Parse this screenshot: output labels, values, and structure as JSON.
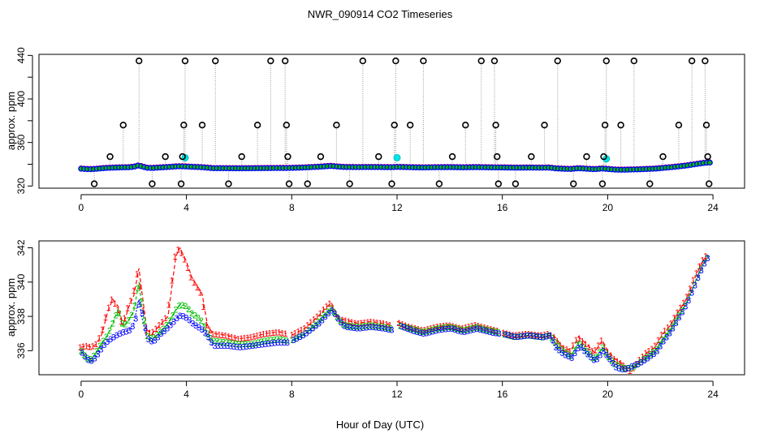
{
  "chart_data": [
    {
      "type": "scatter",
      "title": "NWR_090914  CO2 Timeseries",
      "ylabel": "approx. ppm",
      "xlabel": "",
      "xlim": [
        -1.6,
        25.2
      ],
      "ylim": [
        318,
        441
      ],
      "xticks": [
        0,
        4,
        8,
        12,
        16,
        20,
        24
      ],
      "yticks": [
        320,
        360,
        400,
        440
      ],
      "ytick_labels": [
        "320",
        "360",
        "400",
        "440"
      ],
      "series": [
        {
          "name": "gray lines",
          "color": "#aaaaaa"
        },
        {
          "name": "1",
          "color": "#ff0000"
        },
        {
          "name": "2",
          "color": "#00bb00"
        },
        {
          "name": "3",
          "color": "#0000ff"
        },
        {
          "name": "cyan",
          "color": "#00e5e5"
        },
        {
          "name": "black circles",
          "color": "#000000"
        }
      ],
      "spikes": [
        {
          "x": 0.5,
          "y": 322
        },
        {
          "x": 1.1,
          "y": 347
        },
        {
          "x": 1.6,
          "y": 376
        },
        {
          "x": 2.2,
          "y": 435
        },
        {
          "x": 2.7,
          "y": 322
        },
        {
          "x": 3.2,
          "y": 347
        },
        {
          "x": 3.8,
          "y": 322
        },
        {
          "x": 3.85,
          "y": 347
        },
        {
          "x": 3.9,
          "y": 376
        },
        {
          "x": 3.95,
          "y": 435
        },
        {
          "x": 4.6,
          "y": 376
        },
        {
          "x": 5.1,
          "y": 435
        },
        {
          "x": 5.6,
          "y": 322
        },
        {
          "x": 6.1,
          "y": 347
        },
        {
          "x": 6.7,
          "y": 376
        },
        {
          "x": 7.2,
          "y": 435
        },
        {
          "x": 7.75,
          "y": 435
        },
        {
          "x": 7.8,
          "y": 376
        },
        {
          "x": 7.85,
          "y": 347
        },
        {
          "x": 7.9,
          "y": 322
        },
        {
          "x": 8.6,
          "y": 322
        },
        {
          "x": 9.1,
          "y": 347
        },
        {
          "x": 9.7,
          "y": 376
        },
        {
          "x": 10.2,
          "y": 322
        },
        {
          "x": 10.7,
          "y": 435
        },
        {
          "x": 11.3,
          "y": 347
        },
        {
          "x": 11.8,
          "y": 322
        },
        {
          "x": 11.9,
          "y": 376
        },
        {
          "x": 11.95,
          "y": 435
        },
        {
          "x": 12.5,
          "y": 376
        },
        {
          "x": 13.0,
          "y": 435
        },
        {
          "x": 13.6,
          "y": 322
        },
        {
          "x": 14.1,
          "y": 347
        },
        {
          "x": 14.6,
          "y": 376
        },
        {
          "x": 15.2,
          "y": 435
        },
        {
          "x": 15.7,
          "y": 435
        },
        {
          "x": 15.75,
          "y": 376
        },
        {
          "x": 15.8,
          "y": 347
        },
        {
          "x": 15.85,
          "y": 322
        },
        {
          "x": 16.5,
          "y": 322
        },
        {
          "x": 17.1,
          "y": 347
        },
        {
          "x": 17.6,
          "y": 376
        },
        {
          "x": 18.1,
          "y": 435
        },
        {
          "x": 18.7,
          "y": 322
        },
        {
          "x": 19.2,
          "y": 347
        },
        {
          "x": 19.8,
          "y": 322
        },
        {
          "x": 19.85,
          "y": 347
        },
        {
          "x": 19.9,
          "y": 376
        },
        {
          "x": 19.95,
          "y": 435
        },
        {
          "x": 20.5,
          "y": 376
        },
        {
          "x": 21.0,
          "y": 435
        },
        {
          "x": 21.6,
          "y": 322
        },
        {
          "x": 22.1,
          "y": 347
        },
        {
          "x": 22.7,
          "y": 376
        },
        {
          "x": 23.2,
          "y": 435
        },
        {
          "x": 23.7,
          "y": 435
        },
        {
          "x": 23.75,
          "y": 376
        },
        {
          "x": 23.8,
          "y": 347
        },
        {
          "x": 23.85,
          "y": 322
        }
      ],
      "cyan_points": [
        {
          "x": 3.95,
          "y": 346
        },
        {
          "x": 12.0,
          "y": 346
        },
        {
          "x": 19.95,
          "y": 345
        }
      ]
    },
    {
      "type": "scatter",
      "title": "",
      "ylabel": "approx. ppm",
      "xlabel": "Hour of Day (UTC)",
      "xlim": [
        -1.6,
        25.2
      ],
      "ylim": [
        334.6,
        342.4
      ],
      "xticks": [
        0,
        4,
        8,
        12,
        16,
        20,
        24
      ],
      "yticks": [
        336,
        338,
        340,
        342
      ],
      "ytick_labels": [
        "336",
        "338",
        "340",
        "342"
      ],
      "gaps": [
        [
          7.85,
          8.0
        ],
        [
          11.85,
          12.0
        ],
        [
          15.85,
          16.0
        ]
      ],
      "series": [
        {
          "name": "1",
          "label": "1",
          "color": "#ff0000",
          "x": [
            0.0,
            0.2,
            0.4,
            0.6,
            0.8,
            1.0,
            1.2,
            1.4,
            1.6,
            1.8,
            2.0,
            2.2,
            2.3,
            2.5,
            2.7,
            3.0,
            3.3,
            3.6,
            3.75,
            4.0,
            4.2,
            4.4,
            4.6,
            4.8,
            5.0,
            5.5,
            6.0,
            6.5,
            7.0,
            7.5,
            7.8,
            8.0,
            8.5,
            9.0,
            9.3,
            9.5,
            9.8,
            10.0,
            10.5,
            11.0,
            11.5,
            11.8,
            12.0,
            12.5,
            13.0,
            13.5,
            14.0,
            14.5,
            15.0,
            15.5,
            15.8,
            16.0,
            16.5,
            17.0,
            17.5,
            17.8,
            18.0,
            18.3,
            18.6,
            18.9,
            19.2,
            19.5,
            19.8,
            20.0,
            20.3,
            20.6,
            20.9,
            21.2,
            21.5,
            21.8,
            22.1,
            22.4,
            22.7,
            23.0,
            23.3,
            23.6,
            23.8
          ],
          "y": [
            336.2,
            336.3,
            336.2,
            336.4,
            337.0,
            338.2,
            339.0,
            338.6,
            337.5,
            338.5,
            339.2,
            340.8,
            339.5,
            337.2,
            337.0,
            337.5,
            338.0,
            341.5,
            342.0,
            341.2,
            340.3,
            339.8,
            339.3,
            337.5,
            337.0,
            336.9,
            336.7,
            336.8,
            337.0,
            337.1,
            337.0,
            336.9,
            337.3,
            338.0,
            338.5,
            338.8,
            337.9,
            337.8,
            337.6,
            337.7,
            337.6,
            337.5,
            337.7,
            337.4,
            337.2,
            337.4,
            337.5,
            337.3,
            337.5,
            337.3,
            337.2,
            337.1,
            336.9,
            337.0,
            336.9,
            337.0,
            336.8,
            336.2,
            336.0,
            336.8,
            336.4,
            335.9,
            336.6,
            336.0,
            335.5,
            335.2,
            334.8,
            335.4,
            335.9,
            336.2,
            337.0,
            337.5,
            338.3,
            339.0,
            340.2,
            341.2,
            341.6
          ]
        },
        {
          "name": "2",
          "label": "2",
          "color": "#00bb00",
          "x": [
            0.0,
            0.2,
            0.4,
            0.6,
            0.8,
            1.0,
            1.2,
            1.4,
            1.6,
            1.8,
            2.0,
            2.2,
            2.3,
            2.5,
            2.7,
            3.0,
            3.3,
            3.6,
            3.75,
            4.0,
            4.2,
            4.4,
            4.6,
            4.8,
            5.0,
            5.5,
            6.0,
            6.5,
            7.0,
            7.5,
            7.8,
            8.0,
            8.5,
            9.0,
            9.3,
            9.5,
            9.8,
            10.0,
            10.5,
            11.0,
            11.5,
            11.8,
            12.0,
            12.5,
            13.0,
            13.5,
            14.0,
            14.5,
            15.0,
            15.5,
            15.8,
            16.0,
            16.5,
            17.0,
            17.5,
            17.8,
            18.0,
            18.3,
            18.6,
            18.9,
            19.2,
            19.5,
            19.8,
            20.0,
            20.3,
            20.6,
            20.9,
            21.2,
            21.5,
            21.8,
            22.1,
            22.4,
            22.7,
            23.0,
            23.3,
            23.6,
            23.8
          ],
          "y": [
            336.0,
            335.6,
            335.5,
            336.0,
            336.5,
            336.9,
            337.6,
            338.4,
            337.4,
            337.8,
            338.3,
            340.0,
            338.6,
            336.9,
            336.7,
            337.1,
            337.6,
            338.4,
            338.7,
            338.6,
            338.2,
            338.0,
            337.7,
            337.0,
            336.6,
            336.5,
            336.4,
            336.4,
            336.6,
            336.7,
            336.6,
            336.6,
            337.0,
            337.7,
            338.2,
            338.5,
            337.8,
            337.5,
            337.4,
            337.5,
            337.4,
            337.3,
            337.5,
            337.3,
            337.1,
            337.3,
            337.4,
            337.2,
            337.4,
            337.2,
            337.1,
            337.0,
            336.8,
            336.9,
            336.8,
            336.9,
            336.5,
            336.0,
            335.7,
            336.5,
            336.0,
            335.5,
            336.2,
            335.7,
            335.2,
            335.0,
            335.0,
            335.3,
            335.7,
            336.0,
            336.7,
            337.3,
            338.1,
            338.8,
            339.9,
            341.0,
            341.5
          ]
        },
        {
          "name": "3",
          "label": "3",
          "color": "#0000ff",
          "x": [
            0.0,
            0.2,
            0.4,
            0.6,
            0.8,
            1.0,
            1.2,
            1.4,
            1.6,
            1.8,
            2.0,
            2.2,
            2.3,
            2.5,
            2.7,
            3.0,
            3.3,
            3.6,
            3.75,
            4.0,
            4.2,
            4.4,
            4.6,
            4.8,
            5.0,
            5.5,
            6.0,
            6.5,
            7.0,
            7.5,
            7.8,
            8.0,
            8.5,
            9.0,
            9.3,
            9.5,
            9.8,
            10.0,
            10.5,
            11.0,
            11.5,
            11.8,
            12.0,
            12.5,
            13.0,
            13.5,
            14.0,
            14.5,
            15.0,
            15.5,
            15.8,
            16.0,
            16.5,
            17.0,
            17.5,
            17.8,
            18.0,
            18.3,
            18.6,
            18.9,
            19.2,
            19.5,
            19.8,
            20.0,
            20.3,
            20.6,
            20.9,
            21.2,
            21.5,
            21.8,
            22.1,
            22.4,
            22.7,
            23.0,
            23.3,
            23.6,
            23.8
          ],
          "y": [
            335.9,
            335.5,
            335.4,
            335.8,
            336.3,
            336.6,
            336.8,
            337.0,
            337.1,
            337.2,
            337.6,
            339.0,
            338.0,
            336.7,
            336.5,
            337.0,
            337.4,
            337.9,
            338.1,
            337.9,
            337.6,
            337.4,
            337.2,
            336.8,
            336.3,
            336.3,
            336.2,
            336.3,
            336.4,
            336.5,
            336.5,
            336.6,
            337.0,
            337.6,
            338.1,
            338.4,
            337.7,
            337.4,
            337.3,
            337.4,
            337.3,
            337.2,
            337.5,
            337.2,
            337.0,
            337.2,
            337.3,
            337.1,
            337.3,
            337.1,
            337.0,
            337.0,
            336.8,
            336.9,
            336.8,
            336.9,
            336.2,
            335.8,
            335.6,
            336.3,
            335.8,
            335.4,
            336.0,
            335.6,
            335.0,
            334.9,
            335.1,
            335.3,
            335.6,
            335.9,
            336.6,
            337.2,
            338.0,
            338.8,
            339.9,
            341.0,
            341.5
          ]
        }
      ]
    }
  ]
}
